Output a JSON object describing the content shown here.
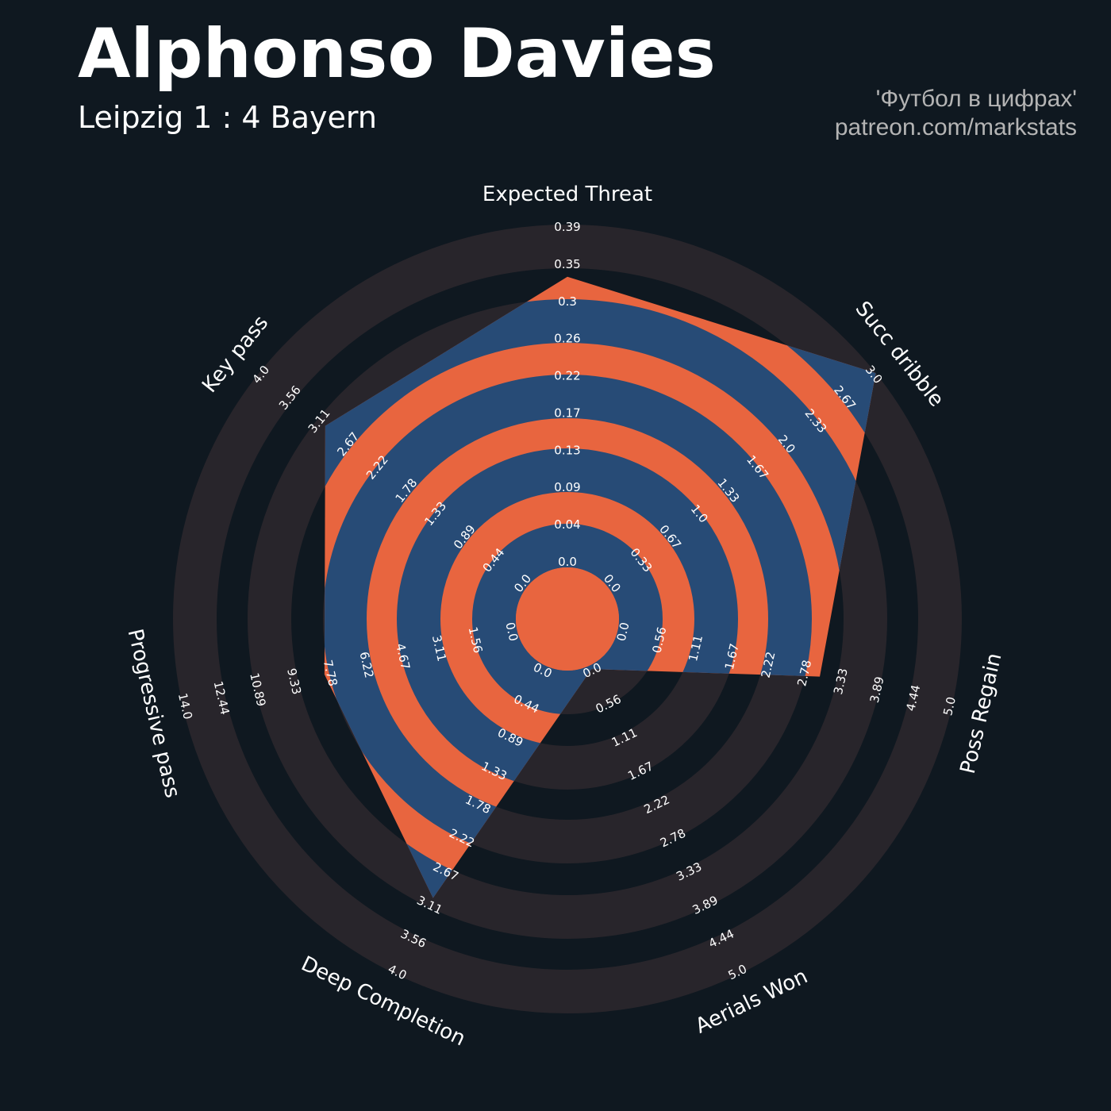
{
  "header": {
    "title": "Alphonso Davies",
    "subtitle": "Leipzig 1 : 4 Bayern",
    "credit_line1": "'Футбол в цифрах'",
    "credit_line2": "patreon.com/markstats"
  },
  "colors": {
    "background": "#0f1820",
    "ring_outside": "#28252b",
    "ring_inside": "#274b76",
    "gap_inside": "#e8653f",
    "text": "#ffffff"
  },
  "chart_data": {
    "type": "radar",
    "params": [
      {
        "name": "Expected Threat",
        "min": 0,
        "max": 0.39,
        "value": 0.33,
        "ticks": [
          "0.0",
          "0.04",
          "0.09",
          "0.13",
          "0.17",
          "0.22",
          "0.26",
          "0.3",
          "0.35",
          "0.39"
        ]
      },
      {
        "name": "Succ dribble",
        "min": 0,
        "max": 3,
        "value": 3,
        "ticks": [
          "0.0",
          "0.33",
          "0.67",
          "1.0",
          "1.33",
          "1.67",
          "2.0",
          "2.33",
          "2.67",
          "3.0"
        ]
      },
      {
        "name": "Poss Regain",
        "min": 0,
        "max": 5,
        "value": 3,
        "ticks": [
          "0.0",
          "0.56",
          "1.11",
          "1.67",
          "2.22",
          "2.78",
          "3.33",
          "3.89",
          "4.44",
          "5.0"
        ]
      },
      {
        "name": "Aerials Won",
        "min": 0,
        "max": 5,
        "value": 0,
        "ticks": [
          "0.0",
          "0.56",
          "1.11",
          "1.67",
          "2.22",
          "2.78",
          "3.33",
          "3.89",
          "4.44",
          "5.0"
        ]
      },
      {
        "name": "Deep Completion",
        "min": 0,
        "max": 4,
        "value": 3,
        "ticks": [
          "0.0",
          "0.44",
          "0.89",
          "1.33",
          "1.78",
          "2.22",
          "2.67",
          "3.11",
          "3.56",
          "4.0"
        ]
      },
      {
        "name": "Progressive pass",
        "min": 0,
        "max": 14,
        "value": 8,
        "ticks": [
          "0.0",
          "1.56",
          "3.11",
          "4.67",
          "6.22",
          "7.78",
          "9.33",
          "10.89",
          "12.44",
          "14.0"
        ]
      },
      {
        "name": "Key pass",
        "min": 0,
        "max": 4,
        "value": 3,
        "ticks": [
          "0.0",
          "0.44",
          "0.89",
          "1.33",
          "1.78",
          "2.22",
          "2.67",
          "3.11",
          "3.56",
          "4.0"
        ]
      }
    ]
  }
}
